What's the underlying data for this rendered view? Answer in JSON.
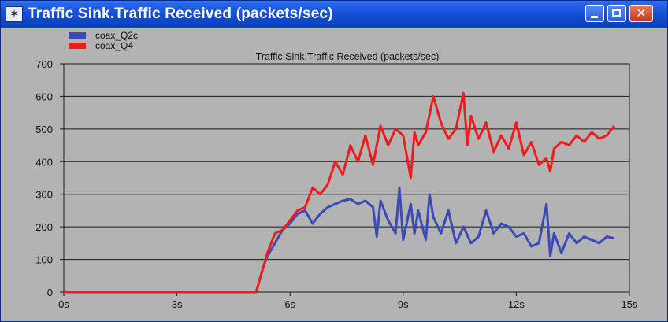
{
  "window": {
    "title": "Traffic Sink.Traffic Received (packets/sec)",
    "controls": {
      "minimize": "minimize-icon",
      "maximize": "maximize-icon",
      "close": "close-icon"
    },
    "colors": {
      "titlebar": "#1650d8",
      "close": "#c4391b",
      "plot_background": "#b3b3b3"
    }
  },
  "chart_data": {
    "type": "line",
    "title": "Traffic Sink.Traffic Received (packets/sec)",
    "xlabel": "",
    "ylabel": "",
    "xlim": [
      0,
      15
    ],
    "ylim": [
      0,
      700
    ],
    "x_ticks": [
      "0s",
      "3s",
      "6s",
      "9s",
      "12s",
      "15s"
    ],
    "y_ticks": [
      "0",
      "100",
      "200",
      "300",
      "400",
      "500",
      "600",
      "700"
    ],
    "grid": "horizontal",
    "legend_position": "top-left",
    "series": [
      {
        "name": "coax_Q2c",
        "color": "#3a4bb8",
        "x": [
          0,
          5.1,
          5.2,
          5.3,
          5.4,
          5.6,
          5.8,
          6.0,
          6.2,
          6.4,
          6.6,
          6.8,
          7.0,
          7.2,
          7.4,
          7.6,
          7.8,
          8.0,
          8.2,
          8.3,
          8.4,
          8.6,
          8.8,
          8.9,
          9.0,
          9.2,
          9.3,
          9.4,
          9.6,
          9.7,
          9.8,
          10.0,
          10.2,
          10.4,
          10.6,
          10.8,
          11.0,
          11.2,
          11.4,
          11.6,
          11.8,
          12.0,
          12.2,
          12.4,
          12.6,
          12.8,
          12.9,
          13.0,
          13.2,
          13.4,
          13.6,
          13.8,
          14.0,
          14.2,
          14.4,
          14.6
        ],
        "y": [
          0,
          0,
          40,
          80,
          110,
          150,
          190,
          210,
          240,
          250,
          210,
          240,
          260,
          270,
          280,
          285,
          270,
          280,
          260,
          170,
          280,
          220,
          180,
          320,
          160,
          270,
          180,
          250,
          160,
          300,
          230,
          180,
          250,
          150,
          200,
          150,
          170,
          250,
          180,
          210,
          200,
          170,
          180,
          140,
          150,
          270,
          110,
          180,
          120,
          180,
          150,
          170,
          160,
          150,
          170,
          165
        ]
      },
      {
        "name": "coax_Q4",
        "color": "#ee1c1c",
        "x": [
          0,
          5.1,
          5.2,
          5.3,
          5.4,
          5.6,
          5.8,
          6.0,
          6.2,
          6.4,
          6.6,
          6.8,
          7.0,
          7.2,
          7.4,
          7.6,
          7.8,
          8.0,
          8.2,
          8.4,
          8.6,
          8.8,
          9.0,
          9.2,
          9.3,
          9.4,
          9.6,
          9.8,
          10.0,
          10.2,
          10.4,
          10.6,
          10.7,
          10.8,
          11.0,
          11.2,
          11.4,
          11.6,
          11.8,
          12.0,
          12.2,
          12.4,
          12.6,
          12.8,
          12.9,
          13.0,
          13.2,
          13.4,
          13.6,
          13.8,
          14.0,
          14.2,
          14.4,
          14.6
        ],
        "y": [
          0,
          0,
          40,
          80,
          120,
          180,
          190,
          220,
          250,
          260,
          320,
          300,
          330,
          400,
          360,
          450,
          400,
          480,
          390,
          510,
          450,
          500,
          480,
          350,
          490,
          450,
          490,
          600,
          520,
          470,
          500,
          610,
          450,
          540,
          470,
          520,
          430,
          480,
          440,
          520,
          420,
          460,
          390,
          410,
          370,
          440,
          460,
          450,
          480,
          460,
          490,
          470,
          480,
          510
        ]
      }
    ]
  }
}
